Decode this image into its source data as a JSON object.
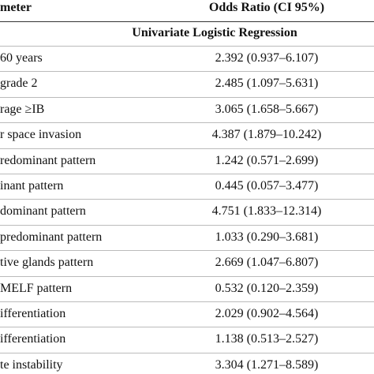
{
  "header": {
    "columns": [
      "meter",
      "Odds Ratio (CI 95%)"
    ]
  },
  "subheader": "Univariate Logistic Regression",
  "table": {
    "rows": [
      [
        "60 years",
        "2.392 (0.937–6.107)"
      ],
      [
        "grade 2",
        "2.485 (1.097–5.631)"
      ],
      [
        "rage ≥IB",
        "3.065 (1.658–5.667)"
      ],
      [
        "r space invasion",
        "4.387 (1.879–10.242)"
      ],
      [
        "redominant pattern",
        "1.242 (0.571–2.699)"
      ],
      [
        "inant pattern",
        "0.445 (0.057–3.477)"
      ],
      [
        "dominant pattern",
        "4.751 (1.833–12.314)"
      ],
      [
        "predominant pattern",
        "1.033 (0.290–3.681)"
      ],
      [
        "tive glands pattern",
        "2.669 (1.047–6.807)"
      ],
      [
        "MELF pattern",
        "0.532 (0.120–2.359)"
      ],
      [
        "ifferentiation",
        "2.029 (0.902–4.564)"
      ],
      [
        "ifferentiation",
        "1.138 (0.513–2.527)"
      ],
      [
        "te instability",
        "3.304 (1.271–8.589)"
      ]
    ]
  }
}
